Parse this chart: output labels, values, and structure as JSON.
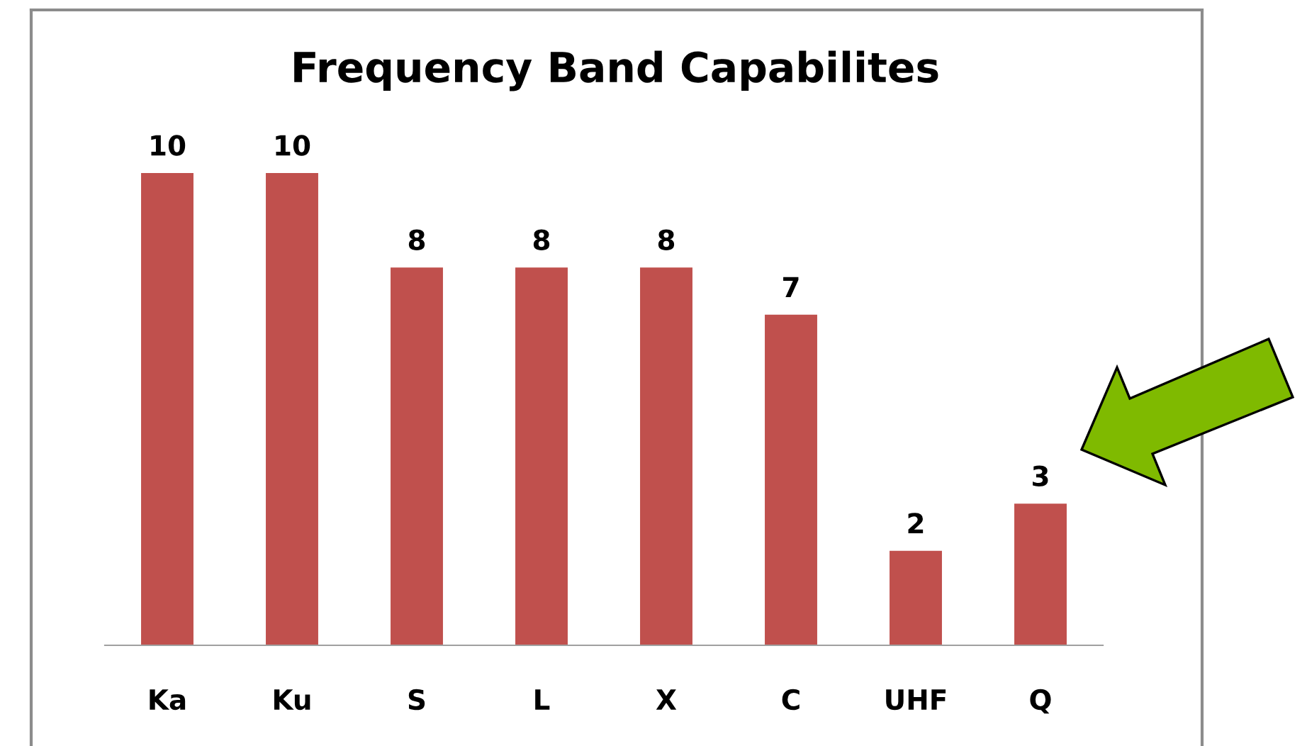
{
  "chart_data": {
    "type": "bar",
    "title": "Frequency Band Capabilites",
    "categories": [
      "Ka",
      "Ku",
      "S",
      "L",
      "X",
      "C",
      "UHF",
      "Q"
    ],
    "values": [
      10,
      10,
      8,
      8,
      8,
      7,
      2,
      3
    ],
    "color": "#c0504d",
    "data_labels": true
  }
}
